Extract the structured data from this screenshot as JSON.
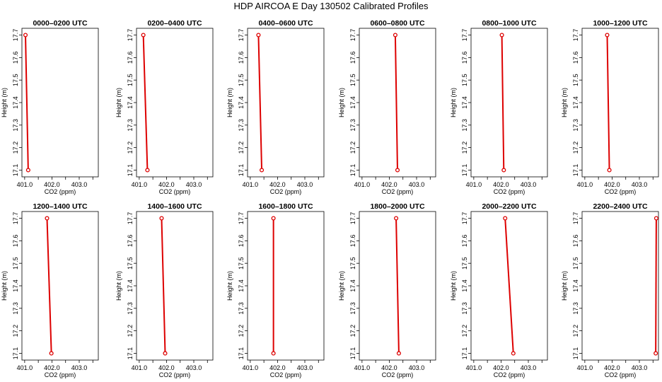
{
  "figure": {
    "title": "HDP AIRCOA E  Day 130502  Calibrated Profiles"
  },
  "chart_data": [
    {
      "type": "line",
      "title": "0000–0200 UTC",
      "xlabel": "CO2 (ppm)",
      "ylabel": "Height (m)",
      "xlim": [
        400.9,
        403.7
      ],
      "ylim": [
        17.07,
        17.73
      ],
      "xticks": [
        "401.0",
        "402.0",
        "403.0"
      ],
      "yticks": [
        "17.1",
        "17.2",
        "17.3",
        "17.4",
        "17.5",
        "17.6",
        "17.7"
      ],
      "series": [
        {
          "color": "#dd0000",
          "points": [
            {
              "x": 401.03,
              "y": 17.7
            },
            {
              "x": 401.13,
              "y": 17.1
            }
          ]
        }
      ]
    },
    {
      "type": "line",
      "title": "0200–0400 UTC",
      "xlabel": "CO2 (ppm)",
      "ylabel": "Height (m)",
      "xlim": [
        400.9,
        403.7
      ],
      "ylim": [
        17.07,
        17.73
      ],
      "xticks": [
        "401.0",
        "402.0",
        "403.0"
      ],
      "yticks": [
        "17.1",
        "17.2",
        "17.3",
        "17.4",
        "17.5",
        "17.6",
        "17.7"
      ],
      "series": [
        {
          "color": "#dd0000",
          "points": [
            {
              "x": 401.15,
              "y": 17.7
            },
            {
              "x": 401.3,
              "y": 17.1
            }
          ]
        }
      ]
    },
    {
      "type": "line",
      "title": "0400–0600 UTC",
      "xlabel": "CO2 (ppm)",
      "ylabel": "Height (m)",
      "xlim": [
        400.9,
        403.7
      ],
      "ylim": [
        17.07,
        17.73
      ],
      "xticks": [
        "401.0",
        "402.0",
        "403.0"
      ],
      "yticks": [
        "17.1",
        "17.2",
        "17.3",
        "17.4",
        "17.5",
        "17.6",
        "17.7"
      ],
      "series": [
        {
          "color": "#dd0000",
          "points": [
            {
              "x": 401.3,
              "y": 17.7
            },
            {
              "x": 401.42,
              "y": 17.1
            }
          ]
        }
      ]
    },
    {
      "type": "line",
      "title": "0600–0800 UTC",
      "xlabel": "CO2 (ppm)",
      "ylabel": "Height (m)",
      "xlim": [
        400.9,
        403.7
      ],
      "ylim": [
        17.07,
        17.73
      ],
      "xticks": [
        "401.0",
        "402.0",
        "403.0"
      ],
      "yticks": [
        "17.1",
        "17.2",
        "17.3",
        "17.4",
        "17.5",
        "17.6",
        "17.7"
      ],
      "series": [
        {
          "color": "#dd0000",
          "points": [
            {
              "x": 402.22,
              "y": 17.7
            },
            {
              "x": 402.3,
              "y": 17.1
            }
          ]
        }
      ]
    },
    {
      "type": "line",
      "title": "0800–1000 UTC",
      "xlabel": "CO2 (ppm)",
      "ylabel": "Height (m)",
      "xlim": [
        400.9,
        403.7
      ],
      "ylim": [
        17.07,
        17.73
      ],
      "xticks": [
        "401.0",
        "402.0",
        "403.0"
      ],
      "yticks": [
        "17.1",
        "17.2",
        "17.3",
        "17.4",
        "17.5",
        "17.6",
        "17.7"
      ],
      "series": [
        {
          "color": "#dd0000",
          "points": [
            {
              "x": 402.03,
              "y": 17.7
            },
            {
              "x": 402.1,
              "y": 17.1
            }
          ]
        }
      ]
    },
    {
      "type": "line",
      "title": "1000–1200 UTC",
      "xlabel": "CO2 (ppm)",
      "ylabel": "Height (m)",
      "xlim": [
        400.9,
        403.7
      ],
      "ylim": [
        17.07,
        17.73
      ],
      "xticks": [
        "401.0",
        "402.0",
        "403.0"
      ],
      "yticks": [
        "17.1",
        "17.2",
        "17.3",
        "17.4",
        "17.5",
        "17.6",
        "17.7"
      ],
      "series": [
        {
          "color": "#dd0000",
          "points": [
            {
              "x": 401.82,
              "y": 17.7
            },
            {
              "x": 401.9,
              "y": 17.1
            }
          ]
        }
      ]
    },
    {
      "type": "line",
      "title": "1200–1400 UTC",
      "xlabel": "CO2 (ppm)",
      "ylabel": "Height (m)",
      "xlim": [
        400.9,
        403.7
      ],
      "ylim": [
        17.07,
        17.73
      ],
      "xticks": [
        "401.0",
        "402.0",
        "403.0"
      ],
      "yticks": [
        "17.1",
        "17.2",
        "17.3",
        "17.4",
        "17.5",
        "17.6",
        "17.7"
      ],
      "series": [
        {
          "color": "#dd0000",
          "points": [
            {
              "x": 401.82,
              "y": 17.7
            },
            {
              "x": 401.98,
              "y": 17.1
            }
          ]
        }
      ]
    },
    {
      "type": "line",
      "title": "1400–1600 UTC",
      "xlabel": "CO2 (ppm)",
      "ylabel": "Height (m)",
      "xlim": [
        400.9,
        403.7
      ],
      "ylim": [
        17.07,
        17.73
      ],
      "xticks": [
        "401.0",
        "402.0",
        "403.0"
      ],
      "yticks": [
        "17.1",
        "17.2",
        "17.3",
        "17.4",
        "17.5",
        "17.6",
        "17.7"
      ],
      "series": [
        {
          "color": "#dd0000",
          "points": [
            {
              "x": 401.82,
              "y": 17.7
            },
            {
              "x": 401.95,
              "y": 17.1
            }
          ]
        }
      ]
    },
    {
      "type": "line",
      "title": "1600–1800 UTC",
      "xlabel": "CO2 (ppm)",
      "ylabel": "Height (m)",
      "xlim": [
        400.9,
        403.7
      ],
      "ylim": [
        17.07,
        17.73
      ],
      "xticks": [
        "401.0",
        "402.0",
        "403.0"
      ],
      "yticks": [
        "17.1",
        "17.2",
        "17.3",
        "17.4",
        "17.5",
        "17.6",
        "17.7"
      ],
      "series": [
        {
          "color": "#dd0000",
          "points": [
            {
              "x": 401.85,
              "y": 17.7
            },
            {
              "x": 401.85,
              "y": 17.1
            }
          ]
        }
      ]
    },
    {
      "type": "line",
      "title": "1800–2000 UTC",
      "xlabel": "CO2 (ppm)",
      "ylabel": "Height (m)",
      "xlim": [
        400.9,
        403.7
      ],
      "ylim": [
        17.07,
        17.73
      ],
      "xticks": [
        "401.0",
        "402.0",
        "403.0"
      ],
      "yticks": [
        "17.1",
        "17.2",
        "17.3",
        "17.4",
        "17.5",
        "17.6",
        "17.7"
      ],
      "series": [
        {
          "color": "#dd0000",
          "points": [
            {
              "x": 402.25,
              "y": 17.7
            },
            {
              "x": 402.35,
              "y": 17.1
            }
          ]
        }
      ]
    },
    {
      "type": "line",
      "title": "2000–2200 UTC",
      "xlabel": "CO2 (ppm)",
      "ylabel": "Height (m)",
      "xlim": [
        400.9,
        403.7
      ],
      "ylim": [
        17.07,
        17.73
      ],
      "xticks": [
        "401.0",
        "402.0",
        "403.0"
      ],
      "yticks": [
        "17.1",
        "17.2",
        "17.3",
        "17.4",
        "17.5",
        "17.6",
        "17.7"
      ],
      "series": [
        {
          "color": "#dd0000",
          "points": [
            {
              "x": 402.15,
              "y": 17.7
            },
            {
              "x": 402.45,
              "y": 17.1
            }
          ]
        }
      ]
    },
    {
      "type": "line",
      "title": "2200–2400 UTC",
      "xlabel": "CO2 (ppm)",
      "ylabel": "Height (m)",
      "xlim": [
        400.9,
        403.7
      ],
      "ylim": [
        17.07,
        17.73
      ],
      "xticks": [
        "401.0",
        "402.0",
        "403.0"
      ],
      "yticks": [
        "17.1",
        "17.2",
        "17.3",
        "17.4",
        "17.5",
        "17.6",
        "17.7"
      ],
      "series": [
        {
          "color": "#dd0000",
          "points": [
            {
              "x": 403.62,
              "y": 17.7
            },
            {
              "x": 403.6,
              "y": 17.1
            }
          ]
        }
      ]
    }
  ]
}
